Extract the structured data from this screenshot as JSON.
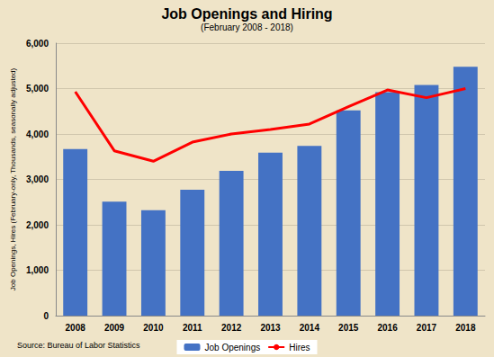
{
  "chart_data": {
    "type": "bar",
    "title": "Job Openings and Hiring",
    "subtitle": "(February 2008 - 2018)",
    "ylabel": "Job Openings, Hires (February-only, Thousands, seasonally adjusted)",
    "source": "Source: Bureau of Labor Statistics",
    "categories": [
      "2008",
      "2009",
      "2010",
      "2011",
      "2012",
      "2013",
      "2014",
      "2015",
      "2016",
      "2017",
      "2018"
    ],
    "series": [
      {
        "name": "Job Openings",
        "type": "bar",
        "color": "#4472c4",
        "values": [
          3670,
          2510,
          2320,
          2770,
          3190,
          3590,
          3740,
          4520,
          4920,
          5080,
          5480
        ]
      },
      {
        "name": "Hires",
        "type": "line",
        "color": "#ff0000",
        "marker": "none",
        "values": [
          4930,
          3630,
          3400,
          3820,
          4000,
          4100,
          4220,
          4600,
          4970,
          4800,
          5000
        ]
      }
    ],
    "ylim": [
      0,
      6000
    ],
    "yticks": [
      0,
      {
        "value": 1000,
        "label": "1,000"
      },
      {
        "value": 2000,
        "label": "2,000"
      },
      {
        "value": 3000,
        "label": "3,000"
      },
      {
        "value": 4000,
        "label": "4,000"
      },
      {
        "value": 5000,
        "label": "5,000"
      },
      {
        "value": 6000,
        "label": "6,000"
      }
    ],
    "grid": true,
    "legend": "bottom"
  }
}
